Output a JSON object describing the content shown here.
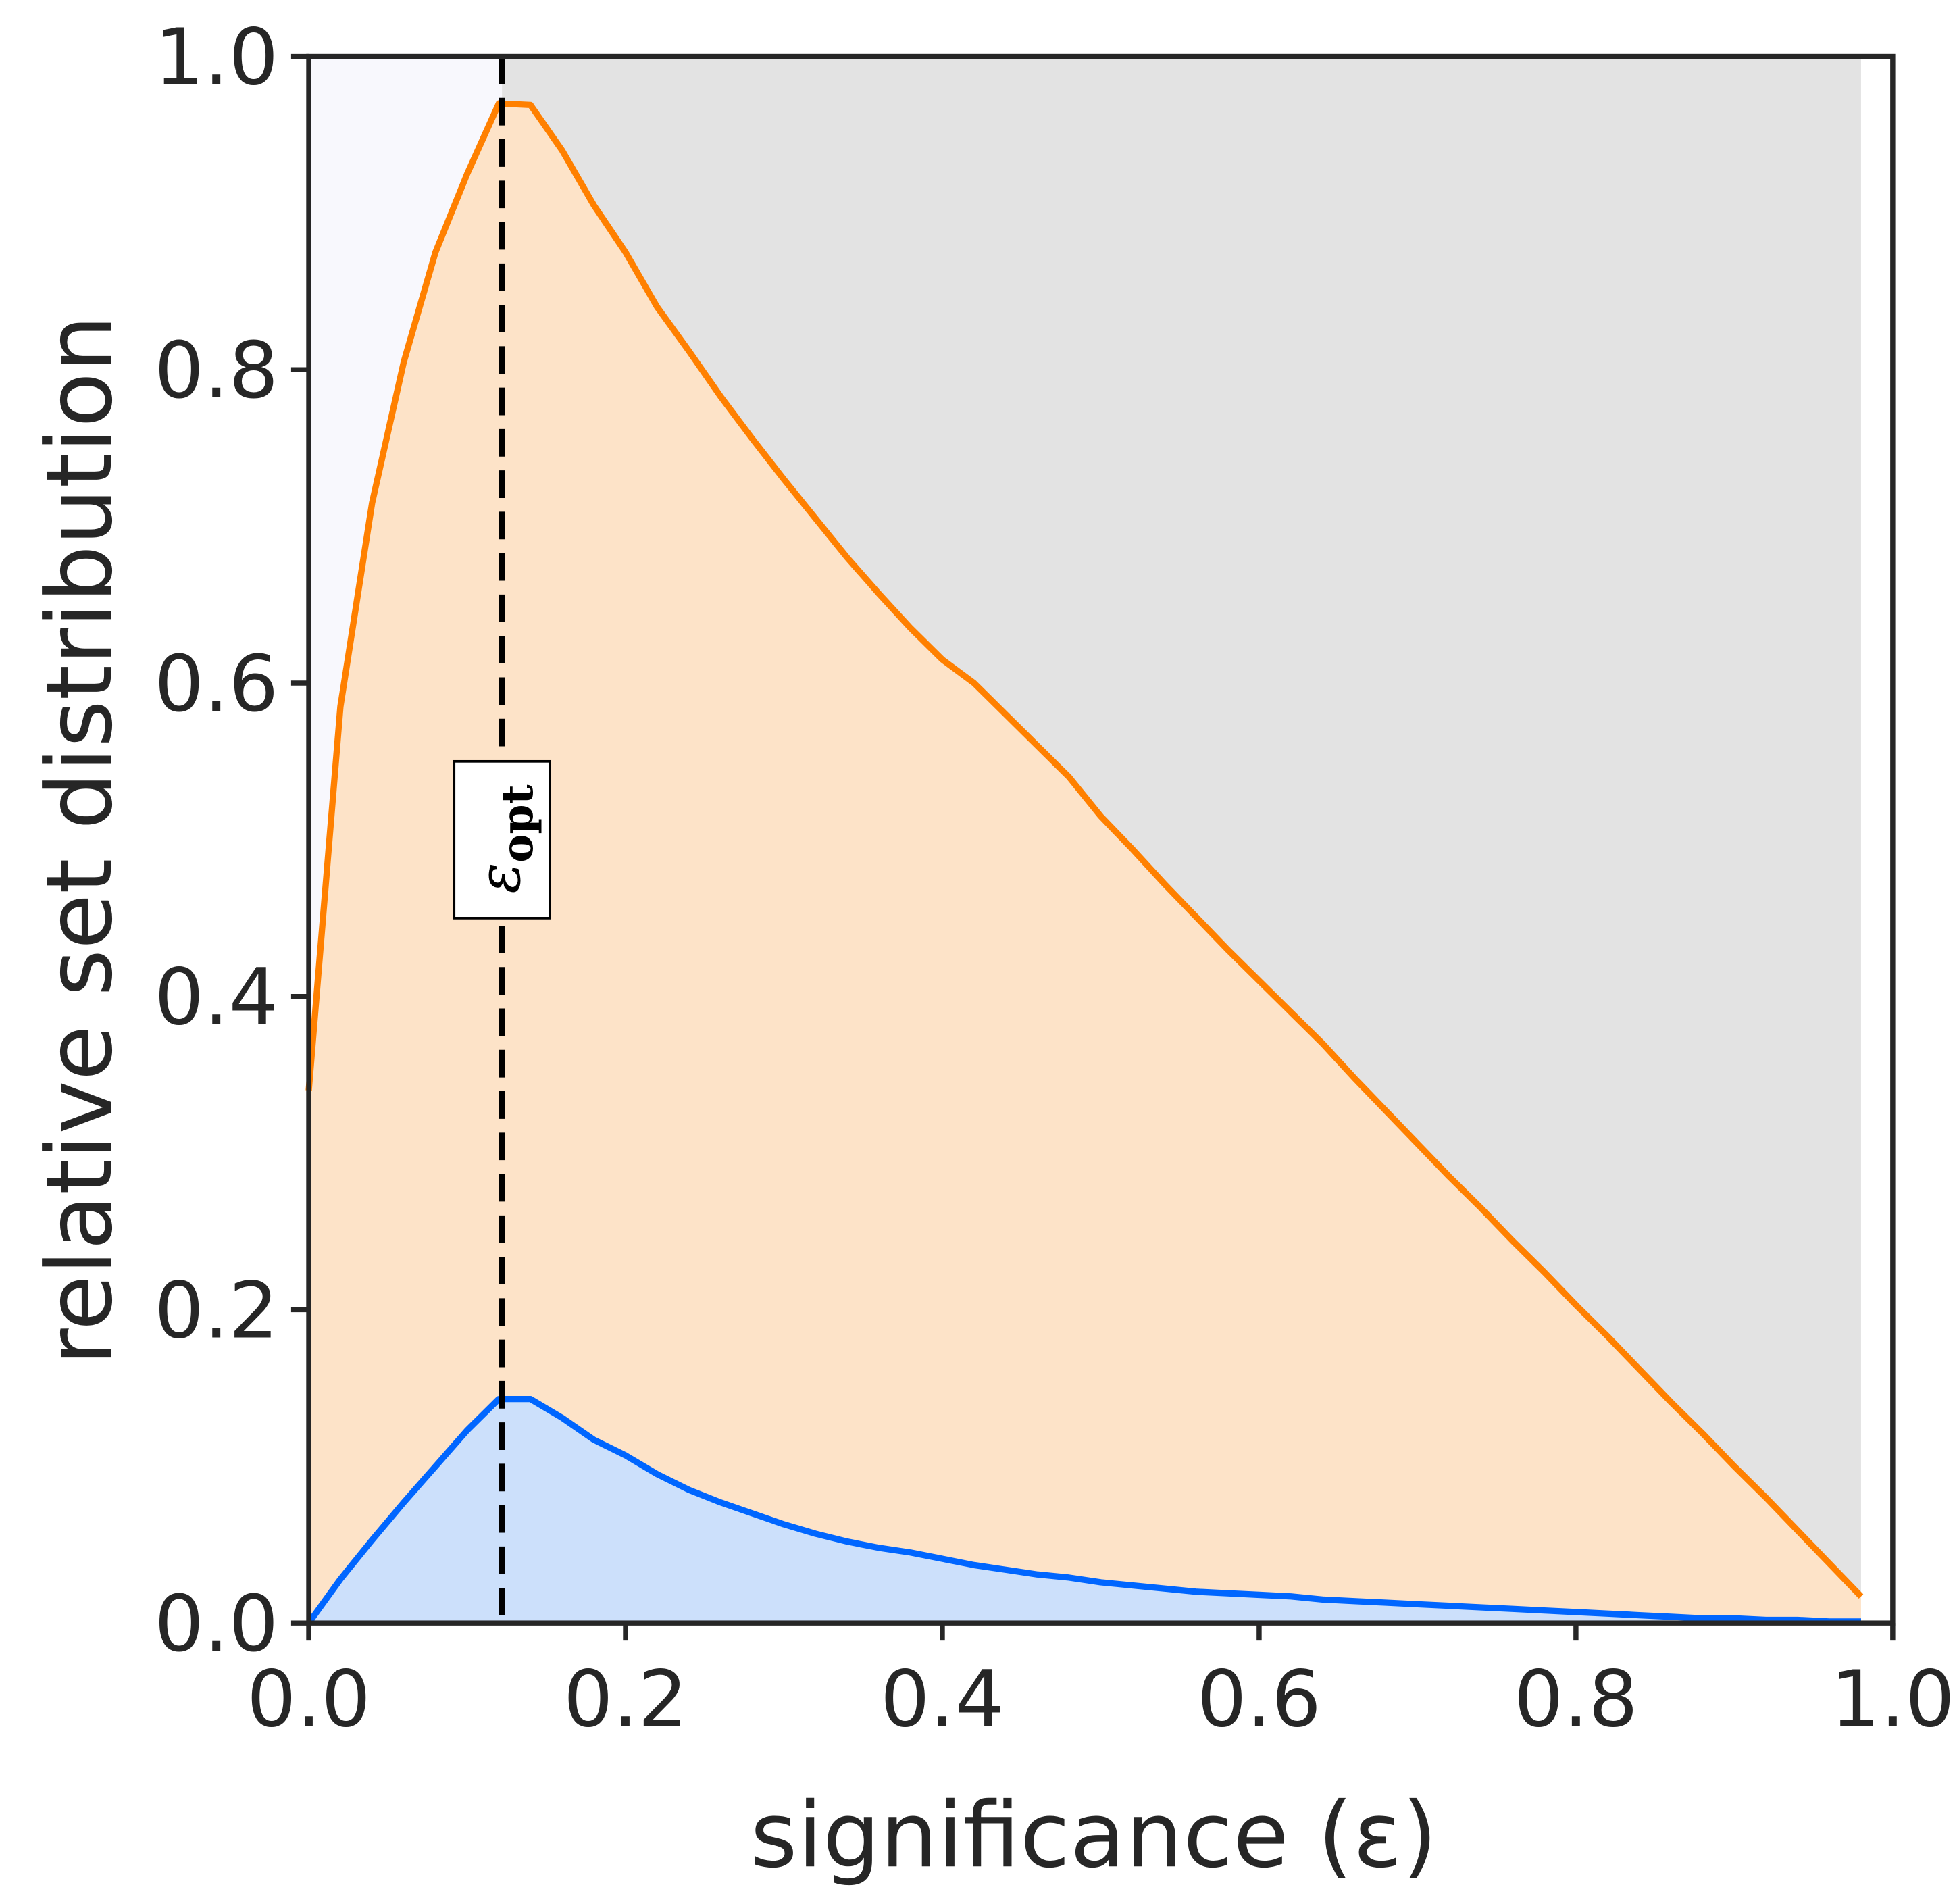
{
  "chart_data": {
    "type": "area",
    "x_label": "significance (ε)",
    "y_label": "relative set distribution",
    "x": [
      0,
      0.02,
      0.04,
      0.06,
      0.08,
      0.1,
      0.12,
      0.14,
      0.16,
      0.18,
      0.2,
      0.22,
      0.24,
      0.26,
      0.28,
      0.3,
      0.32,
      0.34,
      0.36,
      0.38,
      0.4,
      0.42,
      0.44,
      0.46,
      0.48,
      0.5,
      0.52,
      0.54,
      0.56,
      0.58,
      0.6,
      0.62,
      0.64,
      0.66,
      0.68,
      0.7,
      0.72,
      0.74,
      0.76,
      0.78,
      0.8,
      0.82,
      0.84,
      0.86,
      0.88,
      0.9,
      0.92,
      0.94,
      0.96,
      0.98
    ],
    "series": [
      {
        "color": "#0066ff",
        "fill": "#cce0fb",
        "values": [
          0,
          0.028,
          0.053,
          0.077,
          0.1,
          0.123,
          0.143,
          0.143,
          0.131,
          0.117,
          0.107,
          0.095,
          0.085,
          0.077,
          0.07,
          0.063,
          0.057,
          0.052,
          0.048,
          0.045,
          0.041,
          0.037,
          0.034,
          0.031,
          0.029,
          0.026,
          0.024,
          0.022,
          0.02,
          0.019,
          0.018,
          0.017,
          0.015,
          0.014,
          0.013,
          0.012,
          0.011,
          0.01,
          0.009,
          0.008,
          0.007,
          0.006,
          0.005,
          0.004,
          0.003,
          0.003,
          0.002,
          0.002,
          0.001,
          0.001
        ]
      },
      {
        "color": "#ff8000",
        "fill": "#fde3c8",
        "values": [
          0.34,
          0.585,
          0.715,
          0.805,
          0.875,
          0.925,
          0.97,
          0.969,
          0.94,
          0.905,
          0.875,
          0.84,
          0.812,
          0.783,
          0.756,
          0.73,
          0.705,
          0.68,
          0.657,
          0.635,
          0.615,
          0.6,
          0.58,
          0.56,
          0.54,
          0.515,
          0.494,
          0.472,
          0.451,
          0.43,
          0.41,
          0.39,
          0.37,
          0.348,
          0.327,
          0.306,
          0.285,
          0.265,
          0.244,
          0.224,
          0.203,
          0.183,
          0.162,
          0.141,
          0.121,
          0.1,
          0.08,
          0.059,
          0.038,
          0.017
        ]
      }
    ],
    "upper_fill_colors": [
      "#f8f8fd",
      "#e3e3e3"
    ],
    "annotation": {
      "x": 0.122,
      "symbol": "ε",
      "subscript": "opt"
    },
    "xlim": [
      0,
      1
    ],
    "ylim": [
      0,
      1
    ],
    "xticks": [
      {
        "value": 0,
        "label": "0.0"
      },
      0.2,
      0.4,
      0.6,
      0.8,
      {
        "value": 1,
        "label": "1.0"
      }
    ],
    "yticks": [
      {
        "value": 0,
        "label": "0.0"
      },
      0.2,
      0.4,
      0.6,
      0.8,
      {
        "value": 1,
        "label": "1.0"
      }
    ]
  }
}
